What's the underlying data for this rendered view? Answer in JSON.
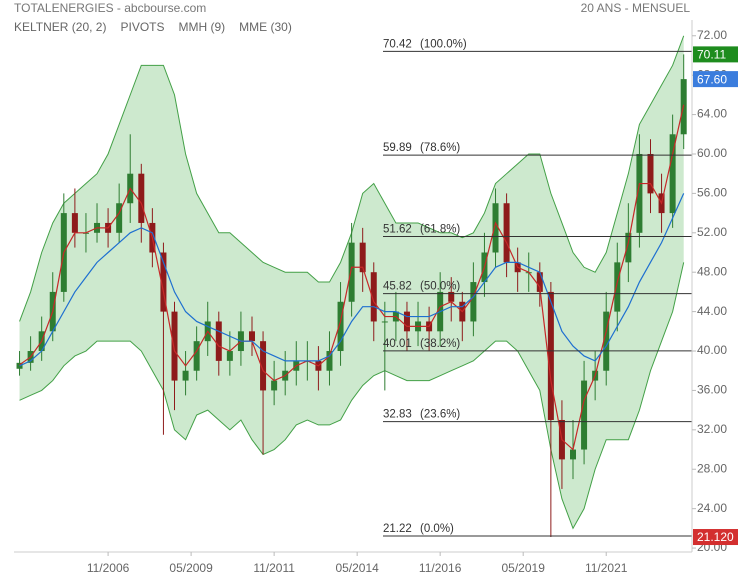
{
  "chart_data": {
    "type": "candlestick",
    "title": "TOTALENERGIES - abcbourse.com",
    "subtitle": "20 ANS - MENSUEL",
    "x": [
      "03/2004",
      "07/2004",
      "11/2004",
      "03/2005",
      "07/2005",
      "11/2005",
      "03/2006",
      "07/2006",
      "11/2006",
      "03/2007",
      "07/2007",
      "11/2007",
      "03/2008",
      "07/2008",
      "11/2008",
      "03/2009",
      "07/2009",
      "11/2009",
      "03/2010",
      "07/2010",
      "11/2010",
      "03/2011",
      "07/2011",
      "11/2011",
      "03/2012",
      "07/2012",
      "11/2012",
      "03/2013",
      "07/2013",
      "11/2013",
      "03/2014",
      "07/2014",
      "11/2014",
      "03/2015",
      "07/2015",
      "11/2015",
      "03/2016",
      "07/2016",
      "11/2016",
      "03/2017",
      "07/2017",
      "11/2017",
      "03/2018",
      "07/2018",
      "11/2018",
      "03/2019",
      "07/2019",
      "11/2019",
      "03/2020",
      "07/2020",
      "11/2020",
      "03/2021",
      "07/2021",
      "11/2021",
      "03/2022",
      "07/2022",
      "11/2022",
      "03/2023",
      "07/2023",
      "11/2023",
      "03/2024"
    ],
    "open": [
      38.2,
      38.8,
      40,
      42,
      46,
      54,
      52,
      52,
      53,
      52,
      55,
      58,
      53,
      50,
      44,
      37,
      38,
      41,
      43,
      39,
      40,
      42,
      41,
      36,
      37,
      38,
      39,
      39,
      38,
      40,
      45,
      51,
      48,
      43,
      43,
      44,
      42,
      43,
      42,
      46,
      45,
      43,
      47,
      50,
      55,
      49,
      48,
      48,
      46,
      33,
      29,
      30,
      37,
      38,
      44,
      49,
      52,
      60,
      56,
      54,
      62
    ],
    "high": [
      40,
      41.5,
      43.5,
      48,
      56,
      56.5,
      54,
      55,
      54.5,
      57,
      62,
      59,
      54.5,
      51,
      45,
      40,
      42.5,
      45,
      44,
      42,
      44,
      43.5,
      42,
      39,
      40,
      41,
      41,
      40.5,
      42,
      47,
      53,
      52.5,
      49,
      45,
      46,
      45,
      45,
      44.5,
      48,
      47.5,
      46,
      49,
      52,
      56.5,
      56,
      50.5,
      50,
      49,
      47,
      35,
      33,
      39,
      40,
      46,
      51,
      55,
      62,
      61.5,
      58,
      64,
      70.11
    ],
    "low": [
      37.5,
      38,
      39,
      41,
      45,
      50.5,
      50,
      51,
      50.5,
      51,
      53,
      51,
      48.5,
      31.5,
      34,
      35.5,
      37,
      39.5,
      37.5,
      37.5,
      38.5,
      39.5,
      29.5,
      34.5,
      35.5,
      36.5,
      37,
      36,
      36.5,
      38.5,
      43.5,
      46,
      41,
      36,
      41,
      40,
      40.5,
      40,
      40.5,
      43,
      41,
      41.5,
      45.5,
      48.5,
      47.5,
      46,
      46,
      44.5,
      21.12,
      26,
      27,
      28.5,
      35,
      36.5,
      42,
      47,
      50.5,
      54,
      52,
      52.5,
      60.5
    ],
    "close": [
      38.8,
      40,
      42,
      46,
      54,
      52,
      52,
      53,
      52,
      55,
      58,
      53,
      50,
      44,
      37,
      38,
      41,
      43,
      39,
      40,
      42,
      41,
      36,
      37,
      38,
      39,
      39,
      38,
      40,
      45,
      51,
      48,
      43,
      43,
      44,
      42,
      43,
      42,
      46,
      45,
      43,
      47,
      50,
      55,
      49,
      48,
      48,
      46,
      33,
      29,
      30,
      37,
      38,
      44,
      49,
      52,
      60,
      56,
      54,
      62,
      67.6
    ],
    "up_color": "#2e7d32",
    "down_color": "#8e1b1b",
    "series": [
      {
        "name": "KELTNER (20, 2)",
        "color": "#43a047",
        "fill": "rgba(76,175,80,0.28)",
        "upper": [
          43,
          46,
          50,
          53,
          55,
          56,
          57,
          58,
          60,
          63,
          66,
          69,
          69,
          69,
          66,
          60,
          56,
          54,
          52,
          52,
          51,
          50,
          49,
          48.5,
          48,
          48,
          48,
          47,
          47,
          49,
          52,
          56,
          57,
          55,
          53,
          53,
          53,
          52.5,
          52,
          52,
          51.5,
          52,
          54,
          57,
          58,
          59,
          60,
          60,
          56,
          53,
          50,
          48.5,
          48,
          50,
          54,
          58,
          63,
          65,
          67,
          69,
          72
        ],
        "lower": [
          35,
          35.5,
          36,
          37,
          38.5,
          39.5,
          40,
          41,
          41,
          41,
          41,
          40,
          38,
          36,
          32,
          31,
          33.5,
          34,
          33,
          32,
          33,
          31,
          29.5,
          30,
          31,
          32.5,
          33,
          32.5,
          32.5,
          33,
          35,
          36.5,
          37.5,
          38,
          37.5,
          37,
          37,
          37,
          37.5,
          38,
          38.5,
          39,
          40,
          41,
          41,
          40,
          38,
          36,
          30,
          25,
          22,
          24,
          28,
          31,
          31,
          31,
          34,
          38,
          41,
          44,
          49
        ]
      },
      {
        "name": "PIVOTS",
        "color": "#333333",
        "levels": [
          {
            "value": 70.42,
            "ratio": "(100.0%)"
          },
          {
            "value": 59.89,
            "ratio": "(78.6%)"
          },
          {
            "value": 51.62,
            "ratio": "(61.8%)"
          },
          {
            "value": 45.82,
            "ratio": "(50.0%)"
          },
          {
            "value": 40.01,
            "ratio": "(38.2%)"
          },
          {
            "value": 32.83,
            "ratio": "(23.6%)"
          },
          {
            "value": 21.22,
            "ratio": "(0.0%)"
          }
        ]
      },
      {
        "name": "MMH (9)",
        "color": "#c62828",
        "values": [
          38.6,
          39.4,
          41,
          44,
          50,
          52,
          52,
          52.5,
          52.5,
          54,
          56.5,
          55,
          51.5,
          46,
          40,
          38.5,
          40,
          42,
          40.5,
          40,
          41,
          41,
          38,
          37,
          37.5,
          38.5,
          39,
          38.5,
          39.5,
          43,
          48.5,
          48.5,
          45,
          43.5,
          43.5,
          42.5,
          42.5,
          42.5,
          44.5,
          45,
          44,
          45.5,
          48.5,
          53,
          51,
          48.5,
          48,
          46.5,
          37,
          31,
          30,
          35,
          37.5,
          42,
          47,
          51,
          57,
          57,
          55,
          60,
          65
        ]
      },
      {
        "name": "MME (30)",
        "color": "#1e6fd0",
        "values": [
          38.5,
          39,
          40,
          42,
          44,
          46,
          47.5,
          49,
          50,
          51,
          52,
          52.5,
          52,
          49,
          46,
          44,
          43,
          42.5,
          42,
          41.5,
          41,
          41,
          40,
          39.5,
          39,
          39,
          39,
          39,
          39.5,
          41,
          43,
          44.5,
          44.5,
          44,
          44,
          43.5,
          43.5,
          43.5,
          44,
          44.5,
          44.5,
          45.5,
          47,
          48.5,
          49,
          49,
          48.5,
          48,
          45,
          42,
          40.5,
          39.5,
          39,
          40.5,
          42.5,
          44.5,
          47,
          49,
          51,
          53.5,
          56
        ]
      }
    ],
    "price_tags": [
      {
        "value": 70.11,
        "color": "#1e8c1e"
      },
      {
        "value": 67.6,
        "label": "67.60",
        "color": "#3b7ddd"
      },
      {
        "value": 21.12,
        "label": "21.120",
        "color": "#d32f2f"
      }
    ],
    "xlim": [
      "01/2004",
      "06/2024"
    ],
    "xticks": [
      "11/2006",
      "05/2009",
      "11/2011",
      "05/2014",
      "11/2016",
      "05/2019",
      "11/2021"
    ],
    "ylim": [
      19.6,
      73.6
    ],
    "yticks": [
      {
        "value": 20,
        "label": "20.00"
      },
      {
        "value": 24,
        "label": "24.00"
      },
      {
        "value": 28,
        "label": "28.00"
      },
      {
        "value": 32,
        "label": "32.00"
      },
      {
        "value": 36,
        "label": "36.00"
      },
      {
        "value": 40,
        "label": "40.00"
      },
      {
        "value": 44,
        "label": "44.00"
      },
      {
        "value": 48,
        "label": "48.00"
      },
      {
        "value": 52,
        "label": "52.00"
      },
      {
        "value": 56,
        "label": "56.00"
      },
      {
        "value": 60,
        "label": "60.00"
      },
      {
        "value": 64,
        "label": "64.00"
      },
      {
        "value": 68,
        "label": "68.00"
      },
      {
        "value": 72,
        "label": "72.00"
      }
    ]
  }
}
